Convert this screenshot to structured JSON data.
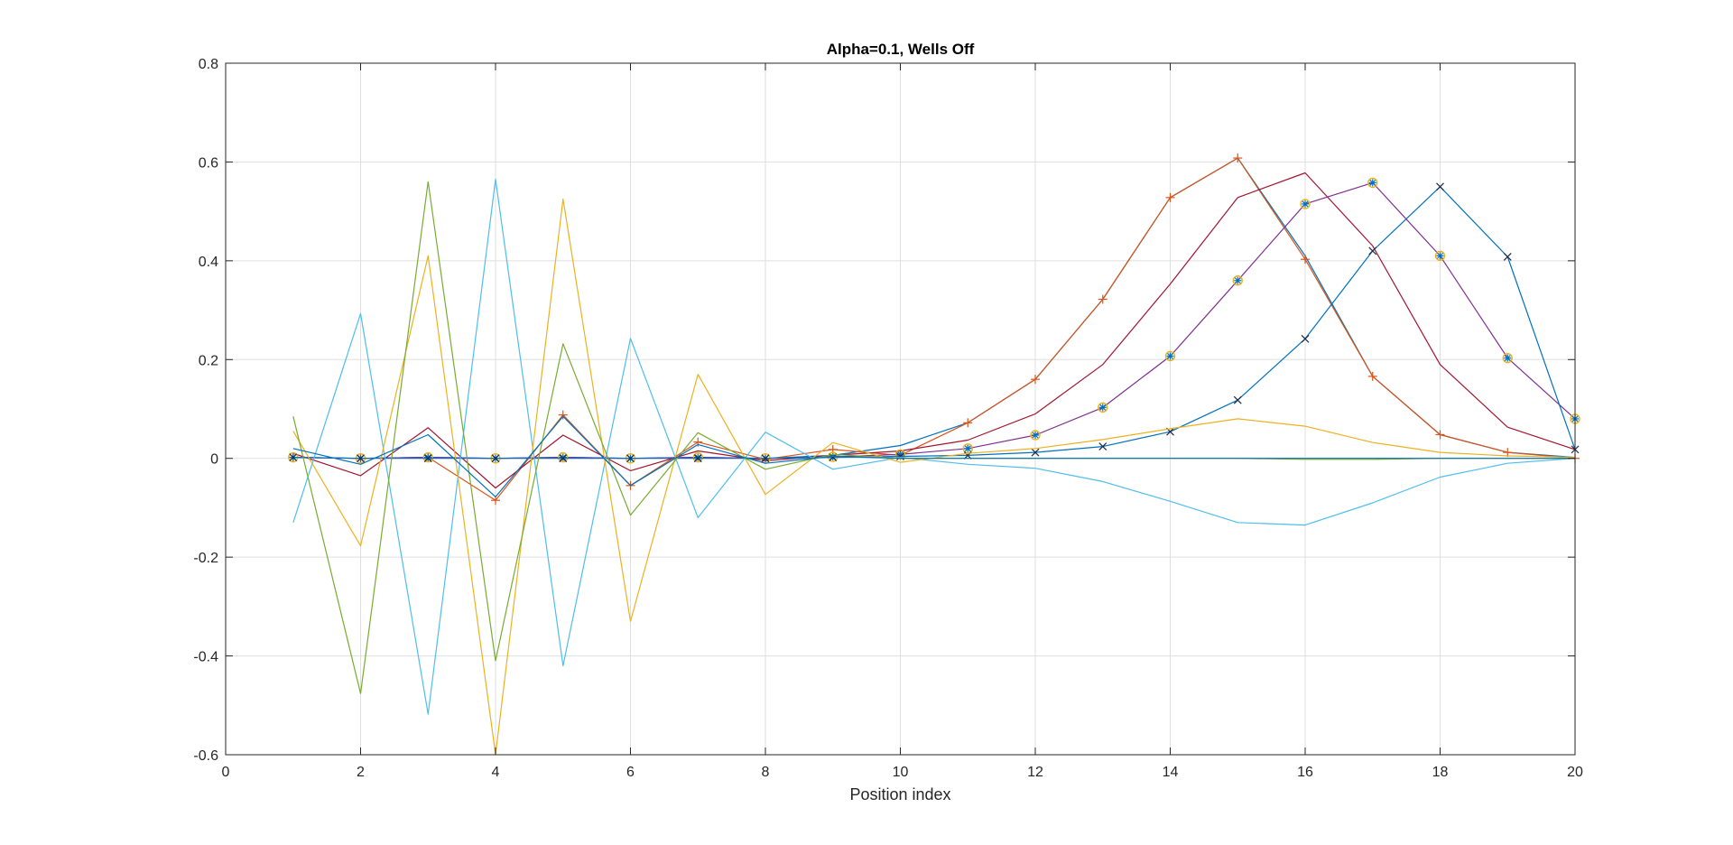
{
  "chart_data": {
    "type": "line",
    "title": "Alpha=0.1, Wells Off",
    "xlabel": "Position index",
    "ylabel": "",
    "xlim": [
      0,
      20
    ],
    "ylim": [
      -0.6,
      0.8
    ],
    "xticks": [
      0,
      2,
      4,
      6,
      8,
      10,
      12,
      14,
      16,
      18,
      20
    ],
    "yticks": [
      -0.6,
      -0.4,
      -0.2,
      0,
      0.2,
      0.4,
      0.6,
      0.8
    ],
    "xtick_labels": [
      "0",
      "2",
      "4",
      "6",
      "8",
      "10",
      "12",
      "14",
      "16",
      "18",
      "20"
    ],
    "ytick_labels": [
      "-0.6",
      "-0.4",
      "-0.2",
      "0",
      "0.2",
      "0.4",
      "0.6",
      "0.8"
    ],
    "grid": true,
    "box": true,
    "x": [
      1,
      2,
      3,
      4,
      5,
      6,
      7,
      8,
      9,
      10,
      11,
      12,
      13,
      14,
      15,
      16,
      17,
      18,
      19,
      20
    ],
    "series": [
      {
        "color": "#0072BD",
        "marker": "none",
        "values": [
          0.002,
          0.0,
          0.002,
          0.0,
          0.002,
          0.0,
          0.002,
          0.0,
          0.006,
          0.026,
          0.072,
          0.16,
          0.322,
          0.528,
          0.608,
          0.41,
          0.166,
          0.048,
          0.012,
          0.002
        ]
      },
      {
        "color": "#D95319",
        "marker": "plus",
        "values": [
          0.002,
          0.0,
          0.002,
          -0.085,
          0.088,
          -0.055,
          0.033,
          -0.002,
          0.018,
          0.006,
          0.072,
          0.16,
          0.322,
          0.528,
          0.608,
          0.403,
          0.166,
          0.048,
          0.012,
          0.0
        ]
      },
      {
        "color": "#A2142F",
        "marker": "none",
        "values": [
          0.01,
          -0.035,
          0.062,
          -0.06,
          0.047,
          -0.025,
          0.015,
          -0.005,
          0.006,
          0.015,
          0.037,
          0.09,
          0.19,
          0.353,
          0.528,
          0.578,
          0.43,
          0.19,
          0.063,
          0.018
        ]
      },
      {
        "color": "#7E2F8E",
        "marker": "circle-star",
        "values": [
          0.002,
          0.0,
          0.002,
          0.0,
          0.002,
          0.0,
          0.002,
          0.0,
          0.003,
          0.008,
          0.02,
          0.047,
          0.103,
          0.207,
          0.36,
          0.515,
          0.558,
          0.41,
          0.203,
          0.08
        ]
      },
      {
        "color": "#0072BD",
        "marker": "x",
        "values": [
          0.002,
          0.0,
          0.0,
          0.0,
          0.0,
          0.0,
          0.0,
          0.0,
          0.002,
          0.004,
          0.006,
          0.012,
          0.024,
          0.054,
          0.118,
          0.242,
          0.42,
          0.55,
          0.408,
          0.018
        ]
      },
      {
        "color": "#4DBEEE",
        "marker": "none",
        "values": [
          -0.13,
          0.293,
          -0.518,
          0.565,
          -0.42,
          0.243,
          -0.12,
          0.053,
          -0.022,
          0.002,
          -0.012,
          -0.02,
          -0.047,
          -0.087,
          -0.13,
          -0.135,
          -0.09,
          -0.038,
          -0.01,
          0.0
        ]
      },
      {
        "color": "#EDB120",
        "marker": "none",
        "values": [
          0.055,
          -0.177,
          0.41,
          -0.6,
          0.525,
          -0.33,
          0.17,
          -0.073,
          0.032,
          -0.008,
          0.01,
          0.02,
          0.038,
          0.06,
          0.08,
          0.065,
          0.032,
          0.012,
          0.005,
          0.002
        ]
      },
      {
        "color": "#77AC30",
        "marker": "none",
        "values": [
          0.085,
          -0.476,
          0.56,
          -0.41,
          0.232,
          -0.115,
          0.052,
          -0.022,
          0.008,
          0.0,
          0.0,
          0.0,
          0.0,
          0.0,
          0.0,
          -0.002,
          -0.002,
          0.0,
          0.0,
          0.0
        ]
      },
      {
        "color": "#0072BD",
        "marker": "none",
        "values": [
          0.02,
          -0.012,
          0.048,
          -0.078,
          0.085,
          -0.055,
          0.028,
          -0.01,
          0.004,
          0.0,
          0.0,
          0.0,
          0.0,
          0.0,
          0.0,
          0.0,
          0.0,
          0.0,
          0.0,
          0.0
        ]
      }
    ]
  }
}
